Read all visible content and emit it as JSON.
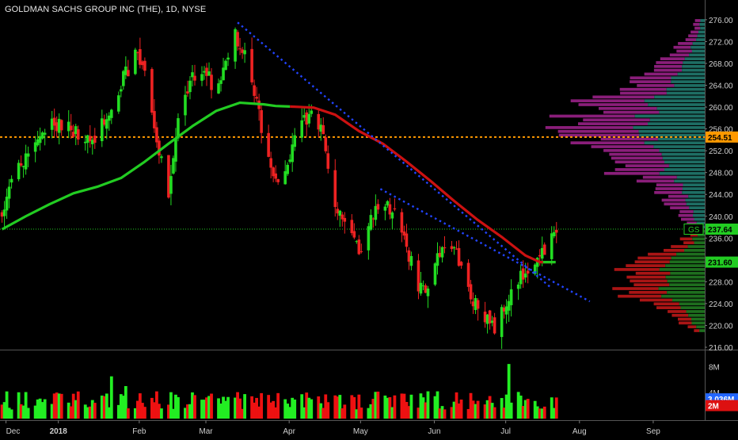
{
  "header": {
    "title": "GOLDMAN SACHS GROUP INC (THE), 1D, NYSE"
  },
  "colors": {
    "background": "#000000",
    "up_candle": "#22dd22",
    "down_candle": "#ee2222",
    "ma_up": "#22cc22",
    "ma_down": "#cc1111",
    "trendline": "#2244ff",
    "resistance": "#ff9900",
    "last_price_line": "#22cc22",
    "profile_upper_a": "#8a1e7a",
    "profile_upper_b": "#1e6e64",
    "profile_lower_a": "#aa1515",
    "profile_lower_b": "#1e6e1e"
  },
  "chart_data": {
    "type": "candlestick",
    "symbol": "GS",
    "price_axis": {
      "ticks": [
        "276.00",
        "272.00",
        "268.00",
        "264.00",
        "260.00",
        "256.00",
        "252.00",
        "248.00",
        "244.00",
        "240.00",
        "236.00",
        "228.00",
        "224.00",
        "220.00",
        "216.00"
      ],
      "range": [
        216,
        277
      ]
    },
    "volume_axis": {
      "ticks": [
        "8M",
        "4M"
      ],
      "range": [
        0,
        10
      ]
    },
    "time_axis": {
      "labels": [
        "Dec",
        "2018",
        "Feb",
        "Mar",
        "Apr",
        "May",
        "Jun",
        "Jul",
        "Aug",
        "Sep"
      ],
      "label_days": [
        0,
        22,
        56,
        84,
        119,
        149,
        180,
        210,
        241,
        272
      ]
    },
    "price_markers": [
      {
        "label": "254.51",
        "value": 254.51,
        "color": "#ff9900",
        "text_color": "#000000"
      },
      {
        "label": "237.64",
        "value": 237.64,
        "color": "#22cc22",
        "text_color": "#000000"
      },
      {
        "label": "GS",
        "value": 237.64,
        "color": "#000000",
        "text_color": "#22cc22"
      },
      {
        "label": "231.60",
        "value": 231.6,
        "color": "#22cc22",
        "text_color": "#000000"
      }
    ],
    "volume_markers": [
      {
        "label": "3.036M",
        "value": 3.036,
        "color": "#2266ff",
        "text_color": "#ffffff"
      },
      {
        "label": "2M",
        "value": 2.0,
        "color": "#dd1111",
        "text_color": "#ffffff"
      }
    ],
    "resistance_level": 254.51,
    "last_price": 237.64,
    "moving_average_last": 231.6,
    "moving_average": [
      {
        "d": 0,
        "v": 237.6
      },
      {
        "d": 10,
        "v": 240
      },
      {
        "d": 20,
        "v": 242.2
      },
      {
        "d": 30,
        "v": 244.2
      },
      {
        "d": 40,
        "v": 245.4
      },
      {
        "d": 50,
        "v": 247
      },
      {
        "d": 60,
        "v": 250
      },
      {
        "d": 70,
        "v": 253.3
      },
      {
        "d": 80,
        "v": 256.5
      },
      {
        "d": 90,
        "v": 259.3
      },
      {
        "d": 100,
        "v": 260.8
      },
      {
        "d": 110,
        "v": 260.5
      },
      {
        "d": 115,
        "v": 260.2
      },
      {
        "d": 121,
        "v": 260.1
      },
      {
        "d": 131,
        "v": 259.9
      },
      {
        "d": 140,
        "v": 258.6
      },
      {
        "d": 150,
        "v": 255.6
      },
      {
        "d": 160,
        "v": 253.3
      },
      {
        "d": 170,
        "v": 250
      },
      {
        "d": 180,
        "v": 246.5
      },
      {
        "d": 190,
        "v": 242.8
      },
      {
        "d": 200,
        "v": 239.3
      },
      {
        "d": 210,
        "v": 236.2
      },
      {
        "d": 220,
        "v": 232.8
      },
      {
        "d": 226,
        "v": 231.6
      },
      {
        "d": 232,
        "v": 231.6
      }
    ],
    "ma_down_from_day": 121,
    "trendlines": [
      {
        "from": {
          "d": 99,
          "v": 275.5
        },
        "to": {
          "d": 231,
          "v": 226.8
        }
      },
      {
        "from": {
          "d": 159,
          "v": 245.0
        },
        "to": {
          "d": 247,
          "v": 224.4
        }
      }
    ],
    "candle_seed": 1337,
    "candle_last_day": 233,
    "price_path": [
      {
        "d": 0,
        "v": 241
      },
      {
        "d": 5,
        "v": 247
      },
      {
        "d": 12,
        "v": 252
      },
      {
        "d": 20,
        "v": 257
      },
      {
        "d": 28,
        "v": 256
      },
      {
        "d": 38,
        "v": 253
      },
      {
        "d": 45,
        "v": 259
      },
      {
        "d": 52,
        "v": 266
      },
      {
        "d": 57,
        "v": 270
      },
      {
        "d": 62,
        "v": 262
      },
      {
        "d": 66,
        "v": 251
      },
      {
        "d": 70,
        "v": 245
      },
      {
        "d": 74,
        "v": 257
      },
      {
        "d": 80,
        "v": 265
      },
      {
        "d": 85,
        "v": 268
      },
      {
        "d": 90,
        "v": 261
      },
      {
        "d": 95,
        "v": 270
      },
      {
        "d": 98,
        "v": 273
      },
      {
        "d": 103,
        "v": 268
      },
      {
        "d": 107,
        "v": 261
      },
      {
        "d": 110,
        "v": 253
      },
      {
        "d": 114,
        "v": 248
      },
      {
        "d": 118,
        "v": 247
      },
      {
        "d": 122,
        "v": 253
      },
      {
        "d": 127,
        "v": 258
      },
      {
        "d": 131,
        "v": 259
      },
      {
        "d": 135,
        "v": 254
      },
      {
        "d": 140,
        "v": 243
      },
      {
        "d": 145,
        "v": 238
      },
      {
        "d": 150,
        "v": 233
      },
      {
        "d": 155,
        "v": 239
      },
      {
        "d": 160,
        "v": 243
      },
      {
        "d": 165,
        "v": 240
      },
      {
        "d": 170,
        "v": 235
      },
      {
        "d": 175,
        "v": 226
      },
      {
        "d": 179,
        "v": 228
      },
      {
        "d": 184,
        "v": 233
      },
      {
        "d": 188,
        "v": 236
      },
      {
        "d": 192,
        "v": 232
      },
      {
        "d": 197,
        "v": 226
      },
      {
        "d": 202,
        "v": 221
      },
      {
        "d": 207,
        "v": 220
      },
      {
        "d": 212,
        "v": 224
      },
      {
        "d": 217,
        "v": 228
      },
      {
        "d": 222,
        "v": 230
      },
      {
        "d": 226,
        "v": 232
      },
      {
        "d": 230,
        "v": 236
      },
      {
        "d": 233,
        "v": 237.6
      }
    ],
    "volume_spikes": [
      {
        "d": 46,
        "v": 6.5
      },
      {
        "d": 52,
        "v": 5.0
      },
      {
        "d": 61,
        "v": 4.0
      },
      {
        "d": 131,
        "v": 9.2
      },
      {
        "d": 213,
        "v": 8.4
      },
      {
        "d": 215,
        "v": 5.0
      }
    ],
    "volume_profile": {
      "upper_center": 256,
      "upper_range": [
        238,
        276
      ],
      "lower_center": 228,
      "lower_range": [
        219,
        237.5
      ]
    }
  }
}
